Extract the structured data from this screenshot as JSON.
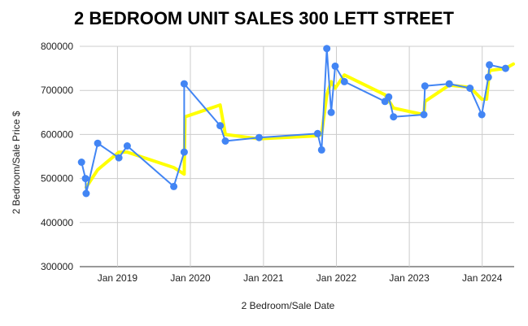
{
  "chart_data": {
    "type": "line",
    "title": "2 BEDROOM UNIT SALES 300 LETT STREET",
    "xlabel": "2 Bedroom/Sale Date",
    "ylabel": "2 Bedroom/Sale Price $",
    "ylim": [
      300000,
      800000
    ],
    "xlim": [
      "2018-06-26",
      "2024-06-09"
    ],
    "y_ticks": [
      "300000",
      "400000",
      "500000",
      "600000",
      "700000",
      "800000"
    ],
    "x_ticks": [
      {
        "label": "Jan 2019",
        "date": "2019-01-01"
      },
      {
        "label": "Jan 2020",
        "date": "2020-01-01"
      },
      {
        "label": "Jan 2021",
        "date": "2021-01-01"
      },
      {
        "label": "Jan 2022",
        "date": "2022-01-01"
      },
      {
        "label": "Jan 2023",
        "date": "2023-01-01"
      },
      {
        "label": "Jan 2024",
        "date": "2024-01-01"
      }
    ],
    "grid": true,
    "series": [
      {
        "color": "#4285f4",
        "marker": "circle",
        "points": [
          {
            "x": "2018-07-05",
            "y": 537000
          },
          {
            "x": "2018-07-25",
            "y": 500000
          },
          {
            "x": "2018-07-28",
            "y": 466000
          },
          {
            "x": "2018-09-24",
            "y": 580000
          },
          {
            "x": "2019-01-08",
            "y": 547000
          },
          {
            "x": "2019-02-19",
            "y": 574000
          },
          {
            "x": "2019-10-10",
            "y": 482000
          },
          {
            "x": "2019-12-01",
            "y": 560000
          },
          {
            "x": "2019-12-01",
            "y": 715000
          },
          {
            "x": "2020-05-29",
            "y": 620000
          },
          {
            "x": "2020-06-24",
            "y": 585000
          },
          {
            "x": "2020-12-10",
            "y": 593000
          },
          {
            "x": "2021-09-29",
            "y": 602000
          },
          {
            "x": "2021-10-19",
            "y": 565000
          },
          {
            "x": "2021-11-14",
            "y": 795000
          },
          {
            "x": "2021-12-06",
            "y": 650000
          },
          {
            "x": "2021-12-26",
            "y": 755000
          },
          {
            "x": "2022-02-10",
            "y": 720000
          },
          {
            "x": "2022-09-01",
            "y": 675000
          },
          {
            "x": "2022-09-20",
            "y": 685000
          },
          {
            "x": "2022-10-14",
            "y": 640000
          },
          {
            "x": "2023-03-15",
            "y": 645000
          },
          {
            "x": "2023-03-20",
            "y": 710000
          },
          {
            "x": "2023-07-20",
            "y": 715000
          },
          {
            "x": "2023-11-01",
            "y": 705000
          },
          {
            "x": "2023-12-30",
            "y": 645000
          },
          {
            "x": "2024-02-01",
            "y": 730000
          },
          {
            "x": "2024-02-06",
            "y": 758000
          },
          {
            "x": "2024-04-27",
            "y": 750000
          }
        ]
      },
      {
        "color": "#ffff00",
        "marker": "none",
        "points": [
          {
            "x": "2018-07-28",
            "y": 480000
          },
          {
            "x": "2018-09-24",
            "y": 520000
          },
          {
            "x": "2019-01-08",
            "y": 560000
          },
          {
            "x": "2019-02-19",
            "y": 560000
          },
          {
            "x": "2019-10-10",
            "y": 525000
          },
          {
            "x": "2019-12-01",
            "y": 510000
          },
          {
            "x": "2019-12-05",
            "y": 640000
          },
          {
            "x": "2020-05-29",
            "y": 667000
          },
          {
            "x": "2020-06-24",
            "y": 600000
          },
          {
            "x": "2020-12-10",
            "y": 590000
          },
          {
            "x": "2021-09-29",
            "y": 597000
          },
          {
            "x": "2021-10-19",
            "y": 600000
          },
          {
            "x": "2021-11-14",
            "y": 690000
          },
          {
            "x": "2021-12-06",
            "y": 720000
          },
          {
            "x": "2021-12-26",
            "y": 705000
          },
          {
            "x": "2022-02-10",
            "y": 735000
          },
          {
            "x": "2022-09-01",
            "y": 690000
          },
          {
            "x": "2022-10-14",
            "y": 660000
          },
          {
            "x": "2023-03-15",
            "y": 645000
          },
          {
            "x": "2023-03-20",
            "y": 675000
          },
          {
            "x": "2023-07-20",
            "y": 712000
          },
          {
            "x": "2023-11-01",
            "y": 707000
          },
          {
            "x": "2023-12-30",
            "y": 680000
          },
          {
            "x": "2024-01-23",
            "y": 680000
          },
          {
            "x": "2024-02-06",
            "y": 745000
          },
          {
            "x": "2024-04-27",
            "y": 750000
          },
          {
            "x": "2024-06-05",
            "y": 760000
          }
        ]
      }
    ]
  }
}
